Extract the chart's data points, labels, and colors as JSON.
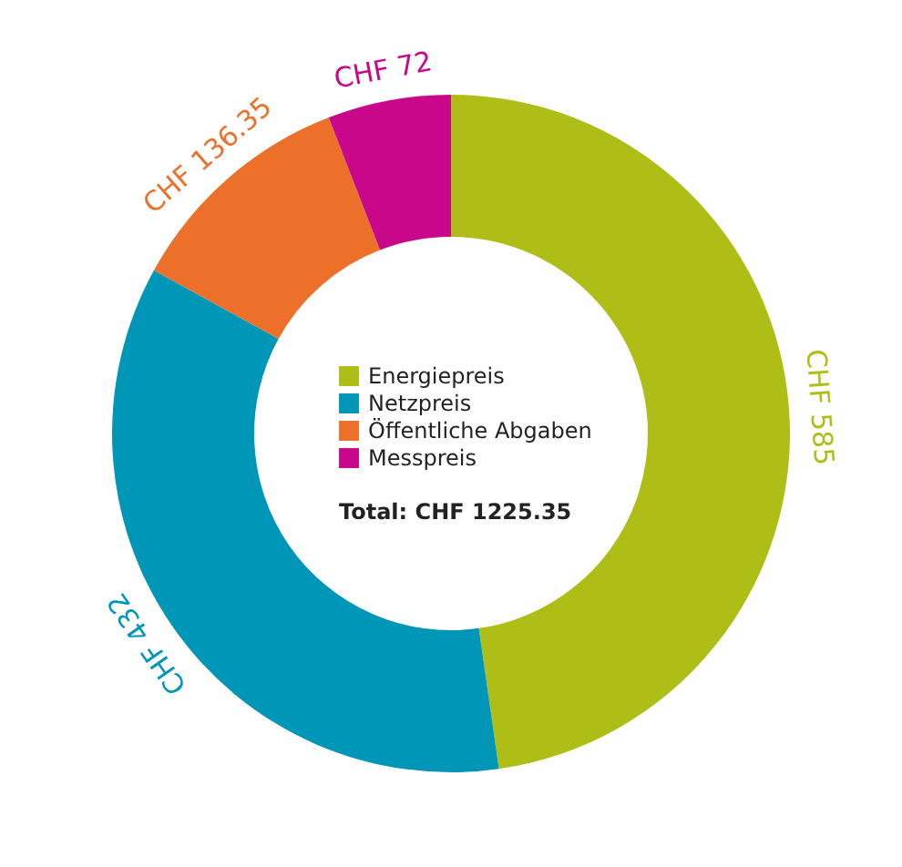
{
  "chart_data": {
    "type": "donut",
    "categories": [
      "Energiepreis",
      "Netzpreis",
      "Öffentliche Abgaben",
      "Messpreis"
    ],
    "values": [
      585,
      432,
      136.35,
      72
    ],
    "colors": [
      "#afbe17",
      "#0096b8",
      "#ec7029",
      "#c8078a"
    ],
    "value_labels": [
      "CHF 585",
      "CHF 432",
      "CHF 136.35",
      "CHF 72"
    ],
    "legend": "center",
    "annotations": [
      "Total: CHF 1225.35"
    ]
  }
}
